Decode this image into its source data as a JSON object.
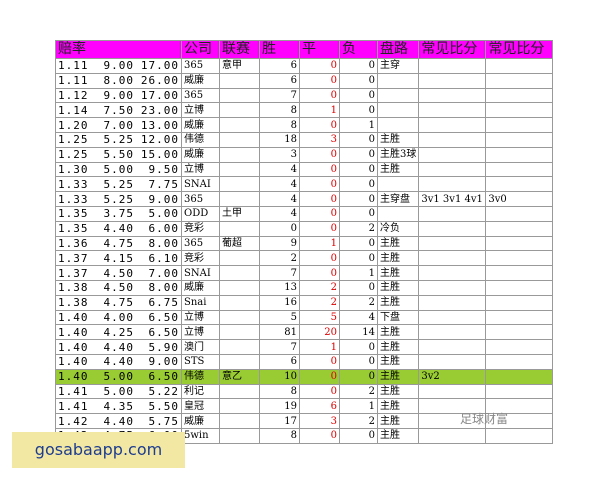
{
  "table": {
    "header": [
      "赔率",
      "公司",
      "联赛",
      "胜",
      "平",
      "负",
      "盘路",
      "常见比分",
      "常见比分"
    ],
    "rows": [
      [
        "1.11",
        "9.00",
        "17.00",
        "365",
        "意甲",
        6,
        0,
        0,
        "主穿",
        null,
        null
      ],
      [
        "1.11",
        "8.00",
        "26.00",
        "威廉",
        null,
        6,
        0,
        0,
        null,
        null,
        null
      ],
      [
        "1.12",
        "9.00",
        "17.00",
        "365",
        null,
        7,
        0,
        0,
        null,
        null,
        null
      ],
      [
        "1.14",
        "7.50",
        "23.00",
        "立博",
        null,
        8,
        1,
        0,
        null,
        null,
        null
      ],
      [
        "1.20",
        "7.00",
        "13.00",
        "威廉",
        null,
        8,
        0,
        1,
        null,
        null,
        null
      ],
      [
        "1.25",
        "5.25",
        "12.00",
        "伟德",
        null,
        18,
        3,
        0,
        "主胜",
        null,
        null
      ],
      [
        "1.25",
        "5.50",
        "15.00",
        "威廉",
        null,
        3,
        0,
        0,
        "主胜3球",
        null,
        null
      ],
      [
        "1.30",
        "5.00",
        "9.50",
        "立博",
        null,
        4,
        0,
        0,
        "主胜",
        null,
        null
      ],
      [
        "1.33",
        "5.25",
        "7.75",
        "SNAI",
        null,
        4,
        0,
        0,
        null,
        null,
        null
      ],
      [
        "1.33",
        "5.25",
        "9.00",
        "365",
        null,
        4,
        0,
        0,
        "主穿盘",
        "3v1 3v1 4v1",
        "3v0"
      ],
      [
        "1.35",
        "3.75",
        "5.00",
        "ODD",
        "土甲",
        4,
        0,
        0,
        null,
        null,
        null
      ],
      [
        "1.35",
        "4.40",
        "6.00",
        "竞彩",
        null,
        0,
        0,
        2,
        "冷负",
        null,
        null
      ],
      [
        "1.36",
        "4.75",
        "8.00",
        "365",
        "葡超",
        9,
        1,
        0,
        "主胜",
        null,
        null
      ],
      [
        "1.37",
        "4.15",
        "6.10",
        "竞彩",
        null,
        2,
        0,
        0,
        "主胜",
        null,
        null
      ],
      [
        "1.37",
        "4.50",
        "7.00",
        "SNAI",
        null,
        7,
        0,
        1,
        "主胜",
        null,
        null
      ],
      [
        "1.38",
        "4.50",
        "8.00",
        "威廉",
        null,
        13,
        2,
        0,
        "主胜",
        null,
        null
      ],
      [
        "1.38",
        "4.75",
        "6.75",
        "Snai",
        null,
        16,
        2,
        2,
        "主胜",
        null,
        null
      ],
      [
        "1.40",
        "4.00",
        "6.50",
        "立博",
        null,
        5,
        5,
        4,
        "下盘",
        null,
        null
      ],
      [
        "1.40",
        "4.25",
        "6.50",
        "立博",
        null,
        81,
        20,
        14,
        "主胜",
        null,
        null
      ],
      [
        "1.40",
        "4.40",
        "5.90",
        "澳门",
        null,
        7,
        1,
        0,
        "主胜",
        null,
        null
      ],
      [
        "1.40",
        "4.40",
        "9.00",
        "STS",
        null,
        6,
        0,
        0,
        "主胜",
        null,
        null
      ],
      [
        "1.40",
        "5.00",
        "6.50",
        "伟德",
        "意乙",
        10,
        0,
        0,
        "主胜",
        "3v2",
        null
      ],
      [
        "1.41",
        "5.00",
        "5.22",
        "利记",
        null,
        8,
        0,
        2,
        "主胜",
        null,
        null
      ],
      [
        "1.41",
        "4.35",
        "5.50",
        "皇冠",
        null,
        19,
        6,
        1,
        "主胜",
        null,
        null
      ],
      [
        "1.42",
        "4.40",
        "5.75",
        "威廉",
        null,
        17,
        3,
        2,
        "主胜",
        null,
        null
      ],
      [
        "1.42",
        "4.75",
        "6.00",
        "5win",
        null,
        8,
        0,
        0,
        "主胜",
        null,
        null
      ]
    ]
  },
  "watermark": "足球财富",
  "overlay": "gosabaapp.com"
}
